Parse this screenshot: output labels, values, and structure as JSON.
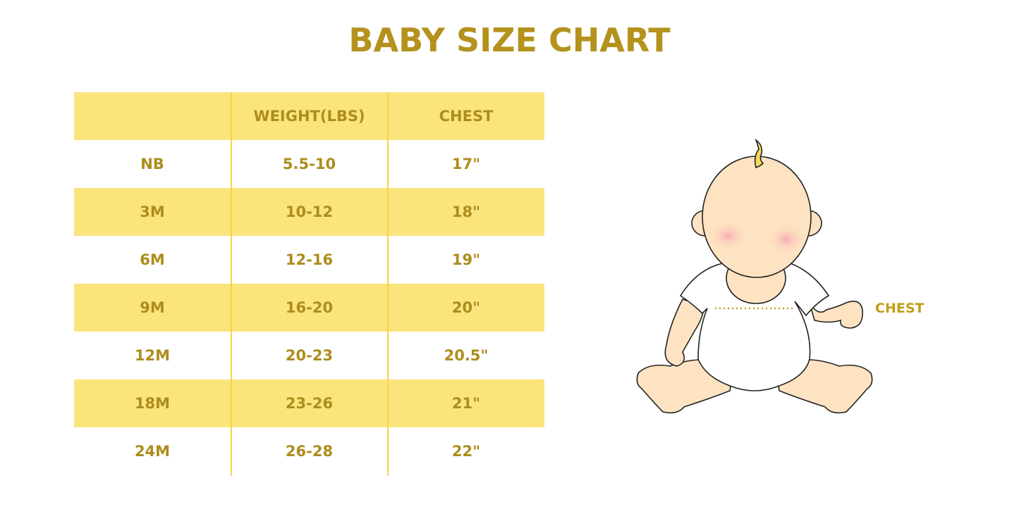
{
  "title": "BABY SIZE CHART",
  "table": {
    "headers": [
      "",
      "WEIGHT(LBS)",
      "CHEST"
    ],
    "rows": [
      [
        "NB",
        "5.5-10",
        "17\""
      ],
      [
        "3M",
        "10-12",
        "18\""
      ],
      [
        "6M",
        "12-16",
        "19\""
      ],
      [
        "9M",
        "16-20",
        "20\""
      ],
      [
        "12M",
        "20-23",
        "20.5\""
      ],
      [
        "18M",
        "23-26",
        "21\""
      ],
      [
        "24M",
        "26-28",
        "22\""
      ]
    ]
  },
  "illustration": {
    "label": "CHEST"
  },
  "colors": {
    "accent_text": "#b08f1d",
    "stripe": "#fbe47c",
    "divider": "#f6d443"
  }
}
